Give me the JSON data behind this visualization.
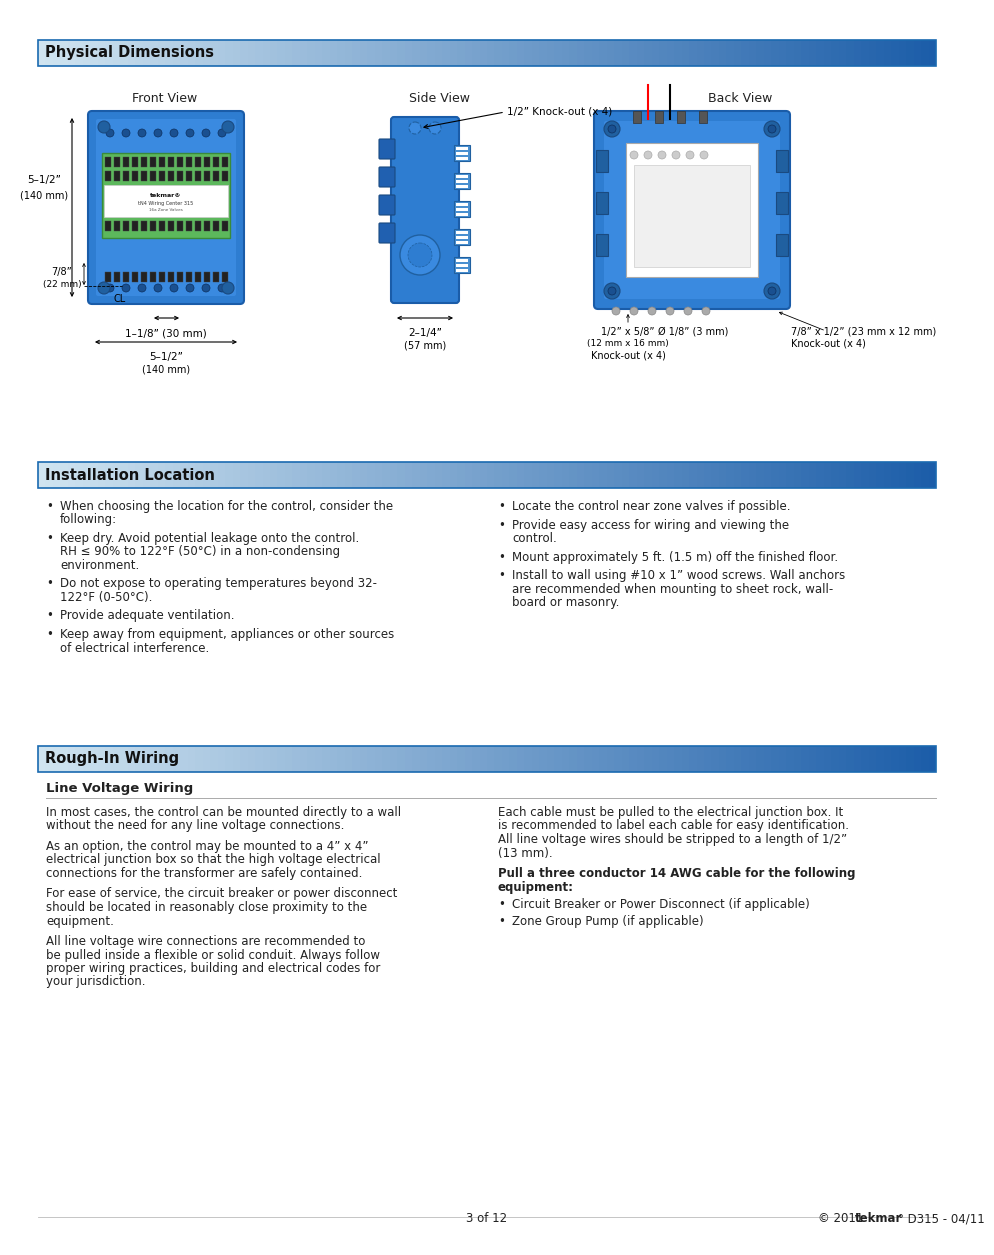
{
  "page_bg": "#ffffff",
  "body_text_color": "#222222",
  "blue_device_color": "#2b6cc4",
  "section1_title": "Physical Dimensions",
  "section2_title": "Installation Location",
  "section3_title": "Rough-In Wiring",
  "section3_sub": "Line Voltage Wiring",
  "front_view_label": "Front View",
  "side_view_label": "Side View",
  "back_view_label": "Back View",
  "install_bullets_left": [
    "When choosing the location for the control, consider the\nfollowing:",
    "Keep dry. Avoid potential leakage onto the control.\nRH ≤ 90% to 122°F (50°C) in a non-condensing\nenvironment.",
    "Do not expose to operating temperatures beyond 32-\n122°F (0-50°C).",
    "Provide adequate ventilation.",
    "Keep away from equipment, appliances or other sources\nof electrical interference."
  ],
  "install_bullets_right": [
    "Locate the control near zone valves if possible.",
    "Provide easy access for wiring and viewing the\ncontrol.",
    "Mount approximately 5 ft. (1.5 m) off the finished floor.",
    "Install to wall using #10 x 1” wood screws. Wall anchors\nare recommended when mounting to sheet rock, wall-\nboard or masonry."
  ],
  "rough_text_left": [
    "In most cases, the control can be mounted directly to a wall\nwithout the need for any line voltage connections.",
    "As an option, the control may be mounted to a 4” x 4”\nelectrical junction box so that the high voltage electrical\nconnections for the transformer are safely contained.",
    "For ease of service, the circuit breaker or power disconnect\nshould be located in reasonably close proximity to the\nequipment.",
    "All line voltage wire connections are recommended to\nbe pulled inside a flexible or solid conduit. Always follow\nproper wiring practices, building and electrical codes for\nyour jurisdiction."
  ],
  "rough_text_right_plain": "Each cable must be pulled to the electrical junction box. It\nis recommended to label each cable for easy identification.\nAll line voltage wires should be stripped to a length of 1/2”\n(13 mm).",
  "rough_bold_line1": "Pull a three conductor 14 AWG cable for the following",
  "rough_bold_line2": "equipment:",
  "rough_bullets_right": [
    "Circuit Breaker or Power Disconnect (if applicable)",
    "Zone Group Pump (if applicable)"
  ],
  "footer_left": "3 of 12",
  "footer_right_pre": "© 2011 ",
  "footer_right_bold": "tekmar",
  "footer_right_post": "° D315 - 04/11"
}
